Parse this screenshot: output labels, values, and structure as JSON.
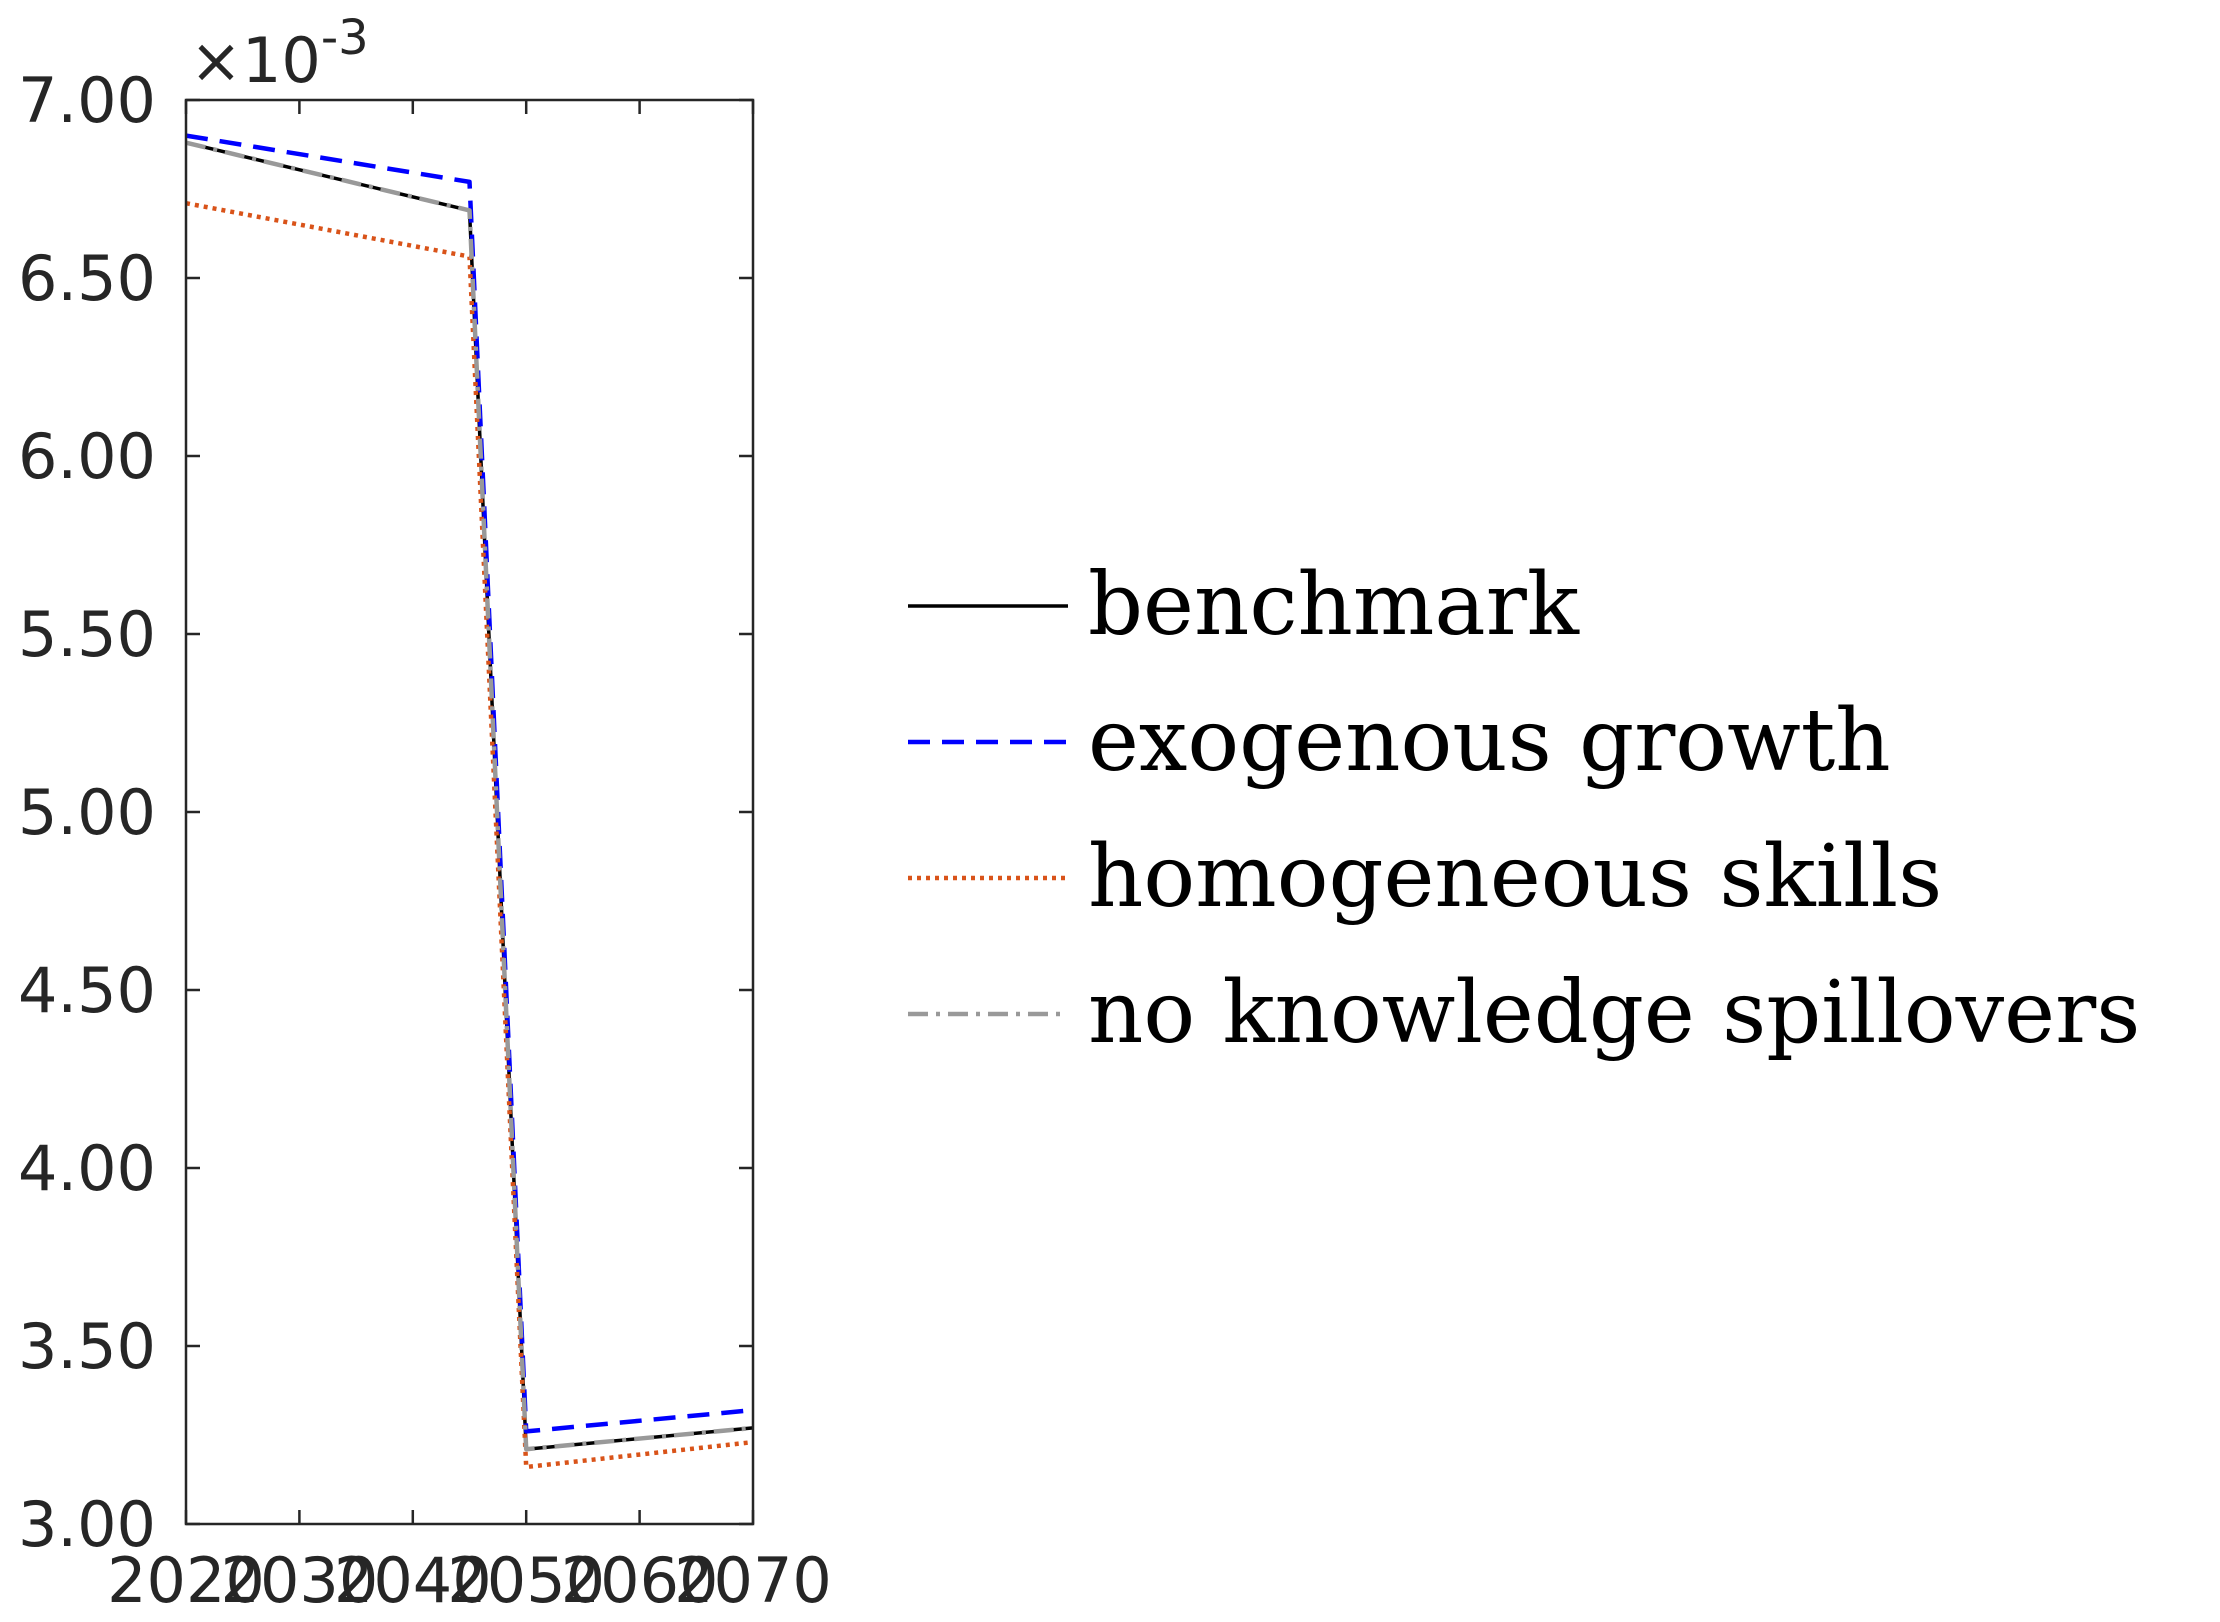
{
  "chart_data": {
    "type": "line",
    "title": "",
    "xlabel": "",
    "ylabel": "",
    "xlim": [
      2020,
      2070
    ],
    "ylim": [
      0.003,
      0.007
    ],
    "y_exponent_label": "×10",
    "y_exponent_power": "-3",
    "x_ticks": [
      2020,
      2030,
      2040,
      2050,
      2060,
      2070
    ],
    "x_tick_labels": [
      "2020",
      "2030",
      "2040",
      "2050",
      "2060",
      "2070"
    ],
    "y_ticks": [
      0.003,
      0.0035,
      0.004,
      0.0045,
      0.005,
      0.0055,
      0.006,
      0.0065,
      0.007
    ],
    "y_tick_labels": [
      "3.00",
      "3.50",
      "4.00",
      "4.50",
      "5.00",
      "5.50",
      "6.00",
      "6.50",
      "7.00"
    ],
    "grid": false,
    "legend_position": "right",
    "series": [
      {
        "name": "benchmark",
        "color": "#000000",
        "dash": "solid",
        "x": [
          2020,
          2045,
          2050,
          2070
        ],
        "y": [
          0.00688,
          0.00669,
          0.00321,
          0.00327
        ]
      },
      {
        "name": "exogenous growth",
        "color": "#0000ff",
        "dash": "dashed",
        "x": [
          2020,
          2045,
          2050,
          2070
        ],
        "y": [
          0.0069,
          0.00677,
          0.00326,
          0.00332
        ]
      },
      {
        "name": "homogeneous skills",
        "color": "#d95319",
        "dash": "dotted",
        "x": [
          2020,
          2045,
          2050,
          2070
        ],
        "y": [
          0.00671,
          0.00656,
          0.00316,
          0.00323
        ]
      },
      {
        "name": "no knowledge spillovers",
        "color": "#999999",
        "dash": "dashdot",
        "x": [
          2020,
          2045,
          2050,
          2070
        ],
        "y": [
          0.00688,
          0.00669,
          0.00321,
          0.00327
        ]
      }
    ]
  }
}
